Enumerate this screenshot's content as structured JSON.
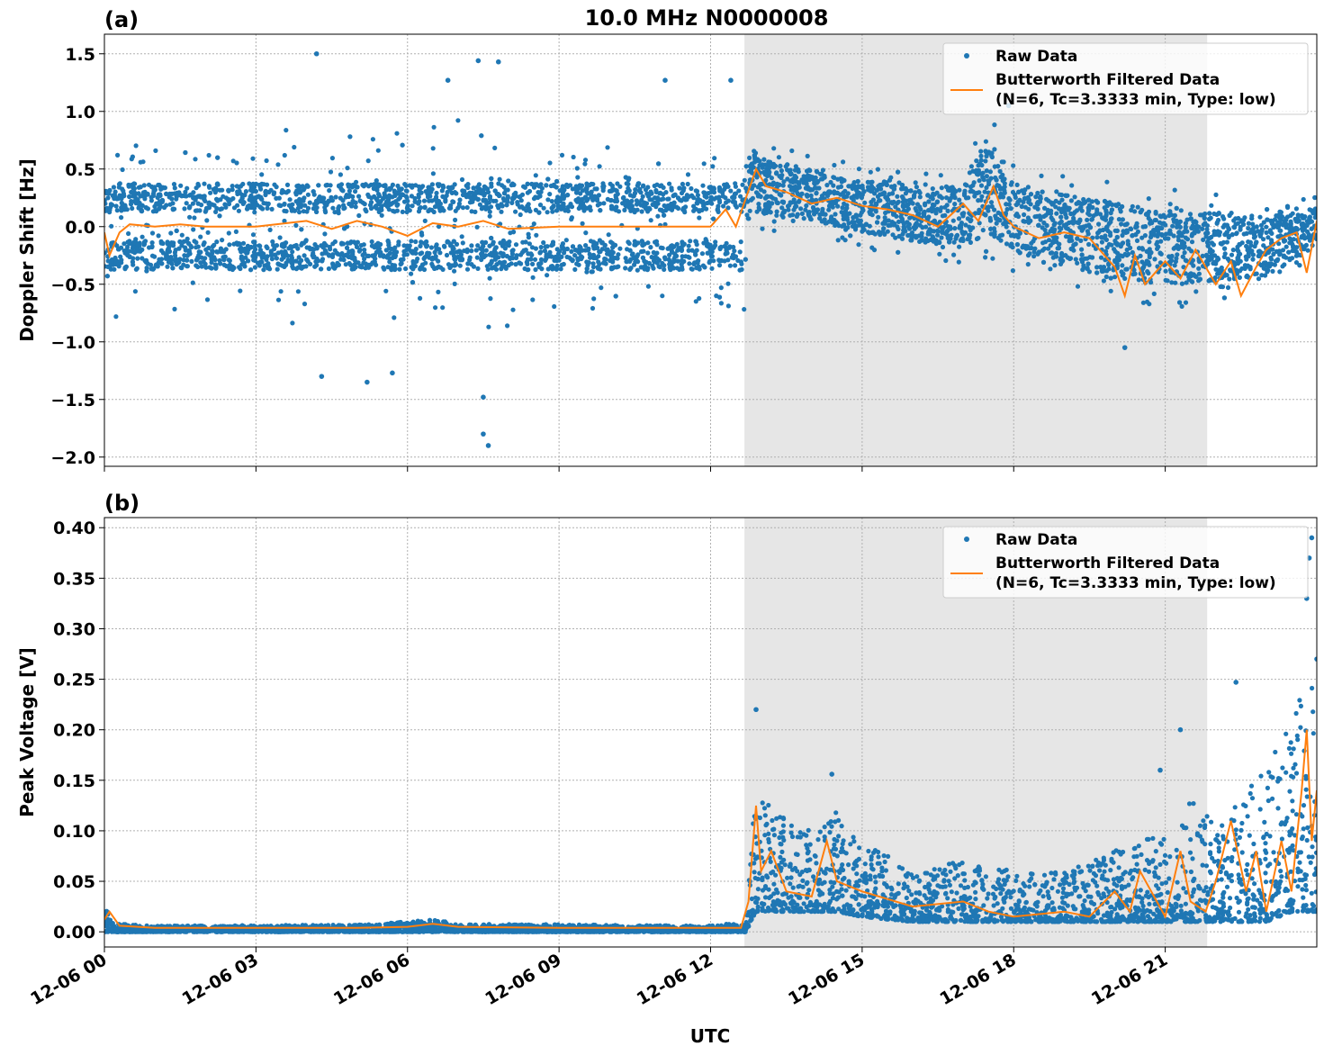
{
  "title": "10.0 MHz N0000008",
  "xlabel": "UTC",
  "colors": {
    "raw": "#1f77b4",
    "filtered": "#ff7f0e",
    "shade": "#e6e6e6"
  },
  "x_ticks": [
    "12-06 00",
    "12-06 03",
    "12-06 06",
    "12-06 09",
    "12-06 12",
    "12-06 15",
    "12-06 18",
    "12-06 21"
  ],
  "legend": {
    "raw": "Raw Data",
    "filtered_line1": "Butterworth Filtered Data",
    "filtered_line2": "(N=6, Tc=3.3333 min, Type: low)"
  },
  "chart_data": [
    {
      "type": "scatter",
      "panel_label": "(a)",
      "ylabel": "Doppler Shift [Hz]",
      "xlim_hours": [
        0,
        24
      ],
      "ylim": [
        -2.08,
        1.67
      ],
      "y_ticks": [
        1.5,
        1.0,
        0.5,
        0.0,
        -0.5,
        -1.0,
        -1.5,
        -2.0
      ],
      "y_tick_labels": [
        "1.5",
        "1.0",
        "0.5",
        "0.0",
        "−0.5",
        "−1.0",
        "−1.5",
        "−2.0"
      ],
      "shaded_span_hours": [
        12.67,
        21.83
      ],
      "grid": true,
      "legend_position": "upper right",
      "series": [
        {
          "name": "Raw Data",
          "kind": "points",
          "envelope_x_hours": [
            0,
            1,
            2,
            3,
            4,
            5,
            6,
            7,
            8,
            9,
            10,
            11,
            12,
            12.6,
            12.8,
            13,
            14,
            15,
            16,
            17,
            17.5,
            18,
            19,
            20,
            21,
            22,
            23,
            24
          ],
          "envelope_low": [
            -0.35,
            -0.35,
            -0.35,
            -0.4,
            -0.45,
            -0.5,
            -0.45,
            -0.45,
            -0.45,
            -0.35,
            -0.35,
            -0.35,
            -0.35,
            -0.4,
            0.1,
            0.05,
            0.0,
            -0.1,
            -0.2,
            -0.25,
            -0.15,
            -0.3,
            -0.4,
            -0.55,
            -0.6,
            -0.55,
            -0.5,
            -0.2
          ],
          "envelope_high": [
            0.35,
            0.35,
            0.35,
            0.4,
            0.45,
            0.5,
            0.45,
            0.45,
            0.45,
            0.35,
            0.35,
            0.35,
            0.35,
            0.45,
            0.75,
            0.65,
            0.55,
            0.45,
            0.45,
            0.4,
            0.9,
            0.45,
            0.35,
            0.3,
            0.2,
            0.2,
            0.15,
            0.2
          ],
          "outliers": [
            [
              4.2,
              1.5
            ],
            [
              7.4,
              1.44
            ],
            [
              7.8,
              1.43
            ],
            [
              6.8,
              1.27
            ],
            [
              11.1,
              1.27
            ],
            [
              7.6,
              -1.9
            ],
            [
              7.5,
              -1.8
            ],
            [
              5.2,
              -1.35
            ],
            [
              5.7,
              -1.27
            ],
            [
              4.3,
              -1.3
            ],
            [
              7.5,
              -1.48
            ],
            [
              20.2,
              -1.05
            ],
            [
              12.4,
              1.27
            ],
            [
              17.9,
              1.05
            ]
          ]
        },
        {
          "name": "Butterworth Filtered Data",
          "kind": "line",
          "x_hours": [
            0,
            0.1,
            0.3,
            0.5,
            1,
            1.5,
            2,
            3,
            4,
            4.5,
            5,
            5.5,
            6,
            6.5,
            7,
            7.5,
            8,
            9,
            10,
            11,
            12,
            12.3,
            12.5,
            12.7,
            12.9,
            13.1,
            13.5,
            14,
            14.5,
            15,
            15.5,
            16,
            16.5,
            17,
            17.3,
            17.6,
            17.8,
            18,
            18.5,
            19,
            19.5,
            20,
            20.2,
            20.4,
            20.6,
            21,
            21.3,
            21.6,
            22,
            22.3,
            22.5,
            22.8,
            23,
            23.3,
            23.6,
            23.8,
            24
          ],
          "y": [
            -0.05,
            -0.25,
            -0.05,
            0.02,
            0.0,
            0.02,
            0.0,
            0.0,
            0.05,
            -0.02,
            0.05,
            0.0,
            -0.08,
            0.03,
            0.0,
            0.05,
            -0.02,
            0.0,
            0.0,
            0.0,
            0.0,
            0.15,
            0.0,
            0.25,
            0.5,
            0.35,
            0.3,
            0.2,
            0.25,
            0.18,
            0.15,
            0.1,
            0.0,
            0.2,
            0.05,
            0.35,
            0.1,
            0.0,
            -0.1,
            -0.05,
            -0.1,
            -0.35,
            -0.6,
            -0.25,
            -0.5,
            -0.3,
            -0.45,
            -0.2,
            -0.5,
            -0.3,
            -0.6,
            -0.35,
            -0.2,
            -0.1,
            -0.05,
            -0.4,
            0.05
          ]
        }
      ]
    },
    {
      "type": "scatter",
      "panel_label": "(b)",
      "ylabel": "Peak Voltage [V]",
      "xlim_hours": [
        0,
        24
      ],
      "ylim": [
        -0.015,
        0.41
      ],
      "y_ticks": [
        0.4,
        0.35,
        0.3,
        0.25,
        0.2,
        0.15,
        0.1,
        0.05,
        0.0
      ],
      "y_tick_labels": [
        "0.40",
        "0.35",
        "0.30",
        "0.25",
        "0.20",
        "0.15",
        "0.10",
        "0.05",
        "0.00"
      ],
      "shaded_span_hours": [
        12.67,
        21.83
      ],
      "grid": true,
      "legend_position": "upper right",
      "series": [
        {
          "name": "Raw Data",
          "kind": "points",
          "envelope_x_hours": [
            0,
            0.2,
            1,
            5,
            6.5,
            7,
            12,
            12.7,
            12.9,
            13.2,
            14,
            14.5,
            15,
            16,
            17,
            18,
            19,
            20,
            21,
            21.5,
            22,
            22.5,
            23,
            23.5,
            24
          ],
          "envelope_low": [
            0.0,
            0.0,
            0.0,
            0.0,
            0.0,
            0.0,
            0.0,
            0.0,
            0.02,
            0.02,
            0.02,
            0.02,
            0.015,
            0.01,
            0.01,
            0.01,
            0.01,
            0.01,
            0.01,
            0.01,
            0.01,
            0.01,
            0.01,
            0.02,
            0.02
          ],
          "envelope_high": [
            0.025,
            0.008,
            0.006,
            0.007,
            0.012,
            0.008,
            0.006,
            0.01,
            0.15,
            0.12,
            0.1,
            0.12,
            0.09,
            0.06,
            0.07,
            0.06,
            0.06,
            0.08,
            0.1,
            0.13,
            0.11,
            0.14,
            0.16,
            0.22,
            0.25
          ],
          "outliers": [
            [
              12.9,
              0.22
            ],
            [
              14.4,
              0.156
            ],
            [
              22.4,
              0.247
            ],
            [
              23.9,
              0.39
            ],
            [
              23.85,
              0.37
            ],
            [
              23.8,
              0.33
            ],
            [
              24.0,
              0.27
            ],
            [
              21.3,
              0.2
            ],
            [
              20.9,
              0.16
            ]
          ]
        },
        {
          "name": "Butterworth Filtered Data",
          "kind": "line",
          "x_hours": [
            0,
            0.1,
            0.3,
            1,
            3,
            5,
            6,
            6.5,
            7,
            9,
            12,
            12.6,
            12.75,
            12.9,
            13.0,
            13.2,
            13.5,
            14,
            14.3,
            14.5,
            15,
            16,
            17,
            17.5,
            18,
            19,
            19.5,
            20,
            20.3,
            20.5,
            21,
            21.3,
            21.5,
            21.8,
            22,
            22.3,
            22.6,
            22.8,
            23,
            23.3,
            23.5,
            23.7,
            23.8,
            23.9,
            24
          ],
          "y": [
            0.012,
            0.02,
            0.006,
            0.004,
            0.004,
            0.004,
            0.005,
            0.008,
            0.005,
            0.004,
            0.004,
            0.004,
            0.03,
            0.125,
            0.06,
            0.08,
            0.04,
            0.035,
            0.09,
            0.05,
            0.04,
            0.025,
            0.03,
            0.02,
            0.015,
            0.02,
            0.015,
            0.04,
            0.02,
            0.06,
            0.015,
            0.08,
            0.03,
            0.02,
            0.05,
            0.11,
            0.04,
            0.08,
            0.02,
            0.09,
            0.04,
            0.14,
            0.2,
            0.09,
            0.14
          ]
        }
      ]
    }
  ]
}
